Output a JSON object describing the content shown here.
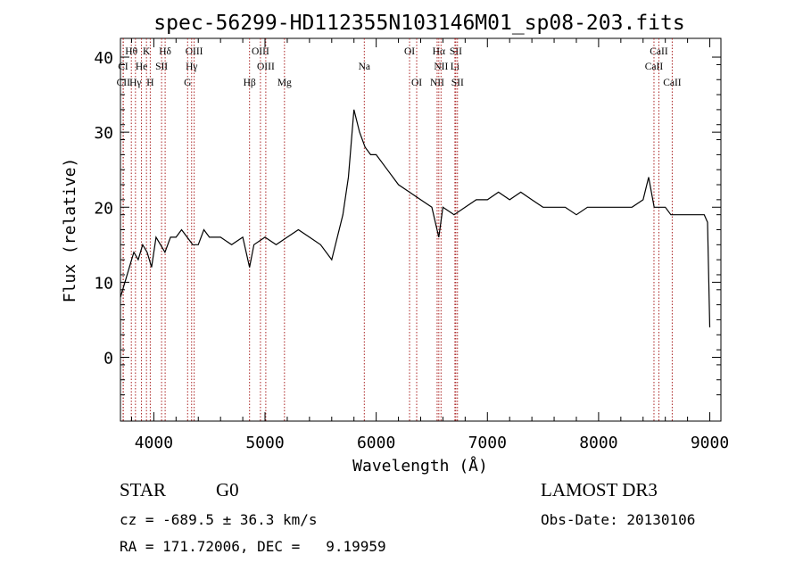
{
  "chart_data": {
    "type": "line",
    "title": "spec-56299-HD112355N103146M01_sp08-203.fits",
    "xlabel": "Wavelength (Å)",
    "ylabel": "Flux (relative)",
    "xlim": [
      3700,
      9100
    ],
    "ylim": [
      -8.5,
      42.5
    ],
    "x_ticks": [
      4000,
      5000,
      6000,
      7000,
      8000,
      9000
    ],
    "x_tick_labels": [
      "4000",
      "5000",
      "6000",
      "7000",
      "8000",
      "9000"
    ],
    "y_ticks": [
      0,
      10,
      20,
      30,
      40
    ],
    "y_tick_labels": [
      "0",
      "10",
      "20",
      "30",
      "40"
    ],
    "grid": false,
    "line_color": "#000000",
    "marker_color": "#aa2222",
    "series": [
      {
        "name": "flux",
        "x": [
          3700,
          3740,
          3780,
          3820,
          3860,
          3900,
          3940,
          3980,
          4020,
          4060,
          4100,
          4150,
          4200,
          4250,
          4300,
          4350,
          4400,
          4450,
          4500,
          4600,
          4700,
          4800,
          4861,
          4900,
          5000,
          5100,
          5200,
          5300,
          5400,
          5500,
          5600,
          5700,
          5750,
          5800,
          5850,
          5900,
          5950,
          6000,
          6100,
          6200,
          6300,
          6400,
          6500,
          6563,
          6600,
          6700,
          6800,
          6900,
          7000,
          7100,
          7200,
          7300,
          7400,
          7500,
          7600,
          7700,
          7800,
          7900,
          8000,
          8100,
          8200,
          8300,
          8400,
          8450,
          8500,
          8550,
          8600,
          8650,
          8700,
          8800,
          8900,
          8950,
          8980,
          9000
        ],
        "y": [
          8,
          10,
          12,
          14,
          13,
          15,
          14,
          12,
          16,
          15,
          14,
          16,
          16,
          17,
          16,
          15,
          15,
          17,
          16,
          16,
          15,
          16,
          12,
          15,
          16,
          15,
          16,
          17,
          16,
          15,
          13,
          19,
          24,
          33,
          30,
          28,
          27,
          27,
          25,
          23,
          22,
          21,
          20,
          16,
          20,
          19,
          20,
          21,
          21,
          22,
          21,
          22,
          21,
          20,
          20,
          20,
          19,
          20,
          20,
          20,
          20,
          20,
          21,
          24,
          20,
          20,
          20,
          19,
          19,
          19,
          19,
          19,
          18,
          4
        ]
      }
    ],
    "line_markers": [
      {
        "label": "Hθ",
        "x": 3798,
        "tier": 0
      },
      {
        "label": "K",
        "x": 3934,
        "tier": 0
      },
      {
        "label": "Hδ",
        "x": 4102,
        "tier": 0
      },
      {
        "label": "OIII",
        "x": 4363,
        "tier": 0
      },
      {
        "label": "OIII",
        "x": 4959,
        "tier": 0
      },
      {
        "label": "OI",
        "x": 6300,
        "tier": 0
      },
      {
        "label": "Hα",
        "x": 6563,
        "tier": 0
      },
      {
        "label": "SII",
        "x": 6716,
        "tier": 0
      },
      {
        "label": "CaII",
        "x": 8542,
        "tier": 0
      },
      {
        "label": "CI",
        "x": 3724,
        "tier": 1
      },
      {
        "label": "He",
        "x": 3889,
        "tier": 1
      },
      {
        "label": "SII",
        "x": 4070,
        "tier": 1
      },
      {
        "label": "Hγ",
        "x": 4340,
        "tier": 1
      },
      {
        "label": "OIII",
        "x": 5007,
        "tier": 1
      },
      {
        "label": "Na",
        "x": 5893,
        "tier": 1
      },
      {
        "label": "NII",
        "x": 6583,
        "tier": 1
      },
      {
        "label": "Li",
        "x": 6708,
        "tier": 1
      },
      {
        "label": "CaII",
        "x": 8498,
        "tier": 1
      },
      {
        "label": "CII",
        "x": 3726,
        "tier": 2
      },
      {
        "label": "Hγ",
        "x": 3835,
        "tier": 2
      },
      {
        "label": "H",
        "x": 3968,
        "tier": 2
      },
      {
        "label": "G",
        "x": 4304,
        "tier": 2
      },
      {
        "label": "Hβ",
        "x": 4861,
        "tier": 2
      },
      {
        "label": "Mg",
        "x": 5175,
        "tier": 2
      },
      {
        "label": "OI",
        "x": 6364,
        "tier": 2
      },
      {
        "label": "NII",
        "x": 6548,
        "tier": 2
      },
      {
        "label": "SII",
        "x": 6731,
        "tier": 2
      },
      {
        "label": "CaII",
        "x": 8662,
        "tier": 2
      }
    ]
  },
  "footer": {
    "object_type": "STAR",
    "spectral_class": "G0",
    "redshift_line": "cz = -689.5 ± 36.3 km/s",
    "coords_line": "RA = 171.72006, DEC =   9.19959",
    "survey": "LAMOST DR3",
    "obs_date": "Obs-Date: 20130106"
  }
}
